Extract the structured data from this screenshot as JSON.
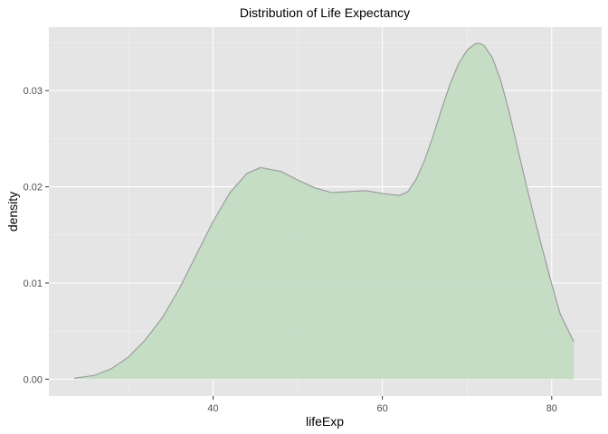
{
  "chart_data": {
    "type": "area",
    "title": "Distribution of Life Expectancy",
    "xlabel": "lifeExp",
    "ylabel": "density",
    "xlim": [
      20.6,
      85.9
    ],
    "ylim": [
      -0.00175,
      0.0366
    ],
    "x_ticks": [
      40,
      60,
      80
    ],
    "y_ticks": [
      0.0,
      0.01,
      0.02,
      0.03
    ],
    "x_tick_labels": [
      "40",
      "60",
      "80"
    ],
    "y_tick_labels": [
      "0.00",
      "0.01",
      "0.02",
      "0.03"
    ],
    "grid": true,
    "fill_color": "#c3dbc3",
    "line_color": "#999999",
    "panel_color": "#e5e5e5",
    "grid_color": "#ffffff",
    "series": [
      {
        "x": [
          23.6,
          26,
          28,
          30,
          32,
          34,
          36,
          38,
          40,
          42,
          44,
          45.6,
          48,
          50,
          52,
          54,
          56,
          58,
          60,
          62,
          63,
          64,
          65,
          66,
          67,
          68,
          69,
          70,
          71,
          71.5,
          72,
          73,
          74,
          75,
          76,
          77,
          78,
          79,
          80,
          81,
          82.6
        ],
        "y": [
          0.0001,
          0.0004,
          0.0011,
          0.0023,
          0.0041,
          0.0064,
          0.0094,
          0.0129,
          0.0164,
          0.0194,
          0.0214,
          0.022,
          0.0216,
          0.0207,
          0.0199,
          0.0194,
          0.0195,
          0.0196,
          0.0193,
          0.0191,
          0.0195,
          0.0208,
          0.0228,
          0.0253,
          0.0281,
          0.0307,
          0.0328,
          0.0342,
          0.0349,
          0.0349,
          0.0347,
          0.0334,
          0.031,
          0.0277,
          0.0239,
          0.0202,
          0.0166,
          0.0132,
          0.0099,
          0.0068,
          0.0039
        ]
      }
    ]
  }
}
